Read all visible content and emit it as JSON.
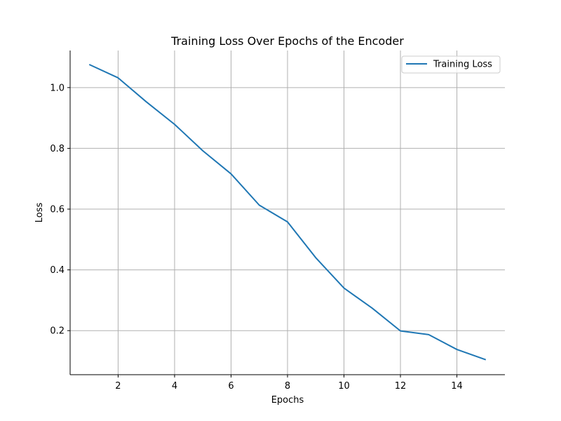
{
  "chart_data": {
    "type": "line",
    "title": "Training Loss Over Epochs of the Encoder",
    "xlabel": "Epochs",
    "ylabel": "Loss",
    "xlim": [
      0.3,
      15.7
    ],
    "ylim": [
      0.055,
      1.122
    ],
    "xticks": [
      2,
      4,
      6,
      8,
      10,
      12,
      14
    ],
    "xtick_labels": [
      "2",
      "4",
      "6",
      "8",
      "10",
      "12",
      "14"
    ],
    "yticks": [
      0.2,
      0.4,
      0.6,
      0.8,
      1.0
    ],
    "ytick_labels": [
      "0.2",
      "0.4",
      "0.6",
      "0.8",
      "1.0"
    ],
    "grid": true,
    "legend_position": "top-right",
    "series": [
      {
        "name": "Training Loss",
        "color": "#1f77b4",
        "x": [
          1,
          2,
          3,
          4,
          5,
          6,
          7,
          8,
          9,
          10,
          11,
          12,
          13,
          14,
          15
        ],
        "y": [
          1.075,
          1.032,
          0.953,
          0.879,
          0.792,
          0.716,
          0.613,
          0.558,
          0.44,
          0.34,
          0.274,
          0.199,
          0.187,
          0.138,
          0.105
        ]
      }
    ]
  }
}
